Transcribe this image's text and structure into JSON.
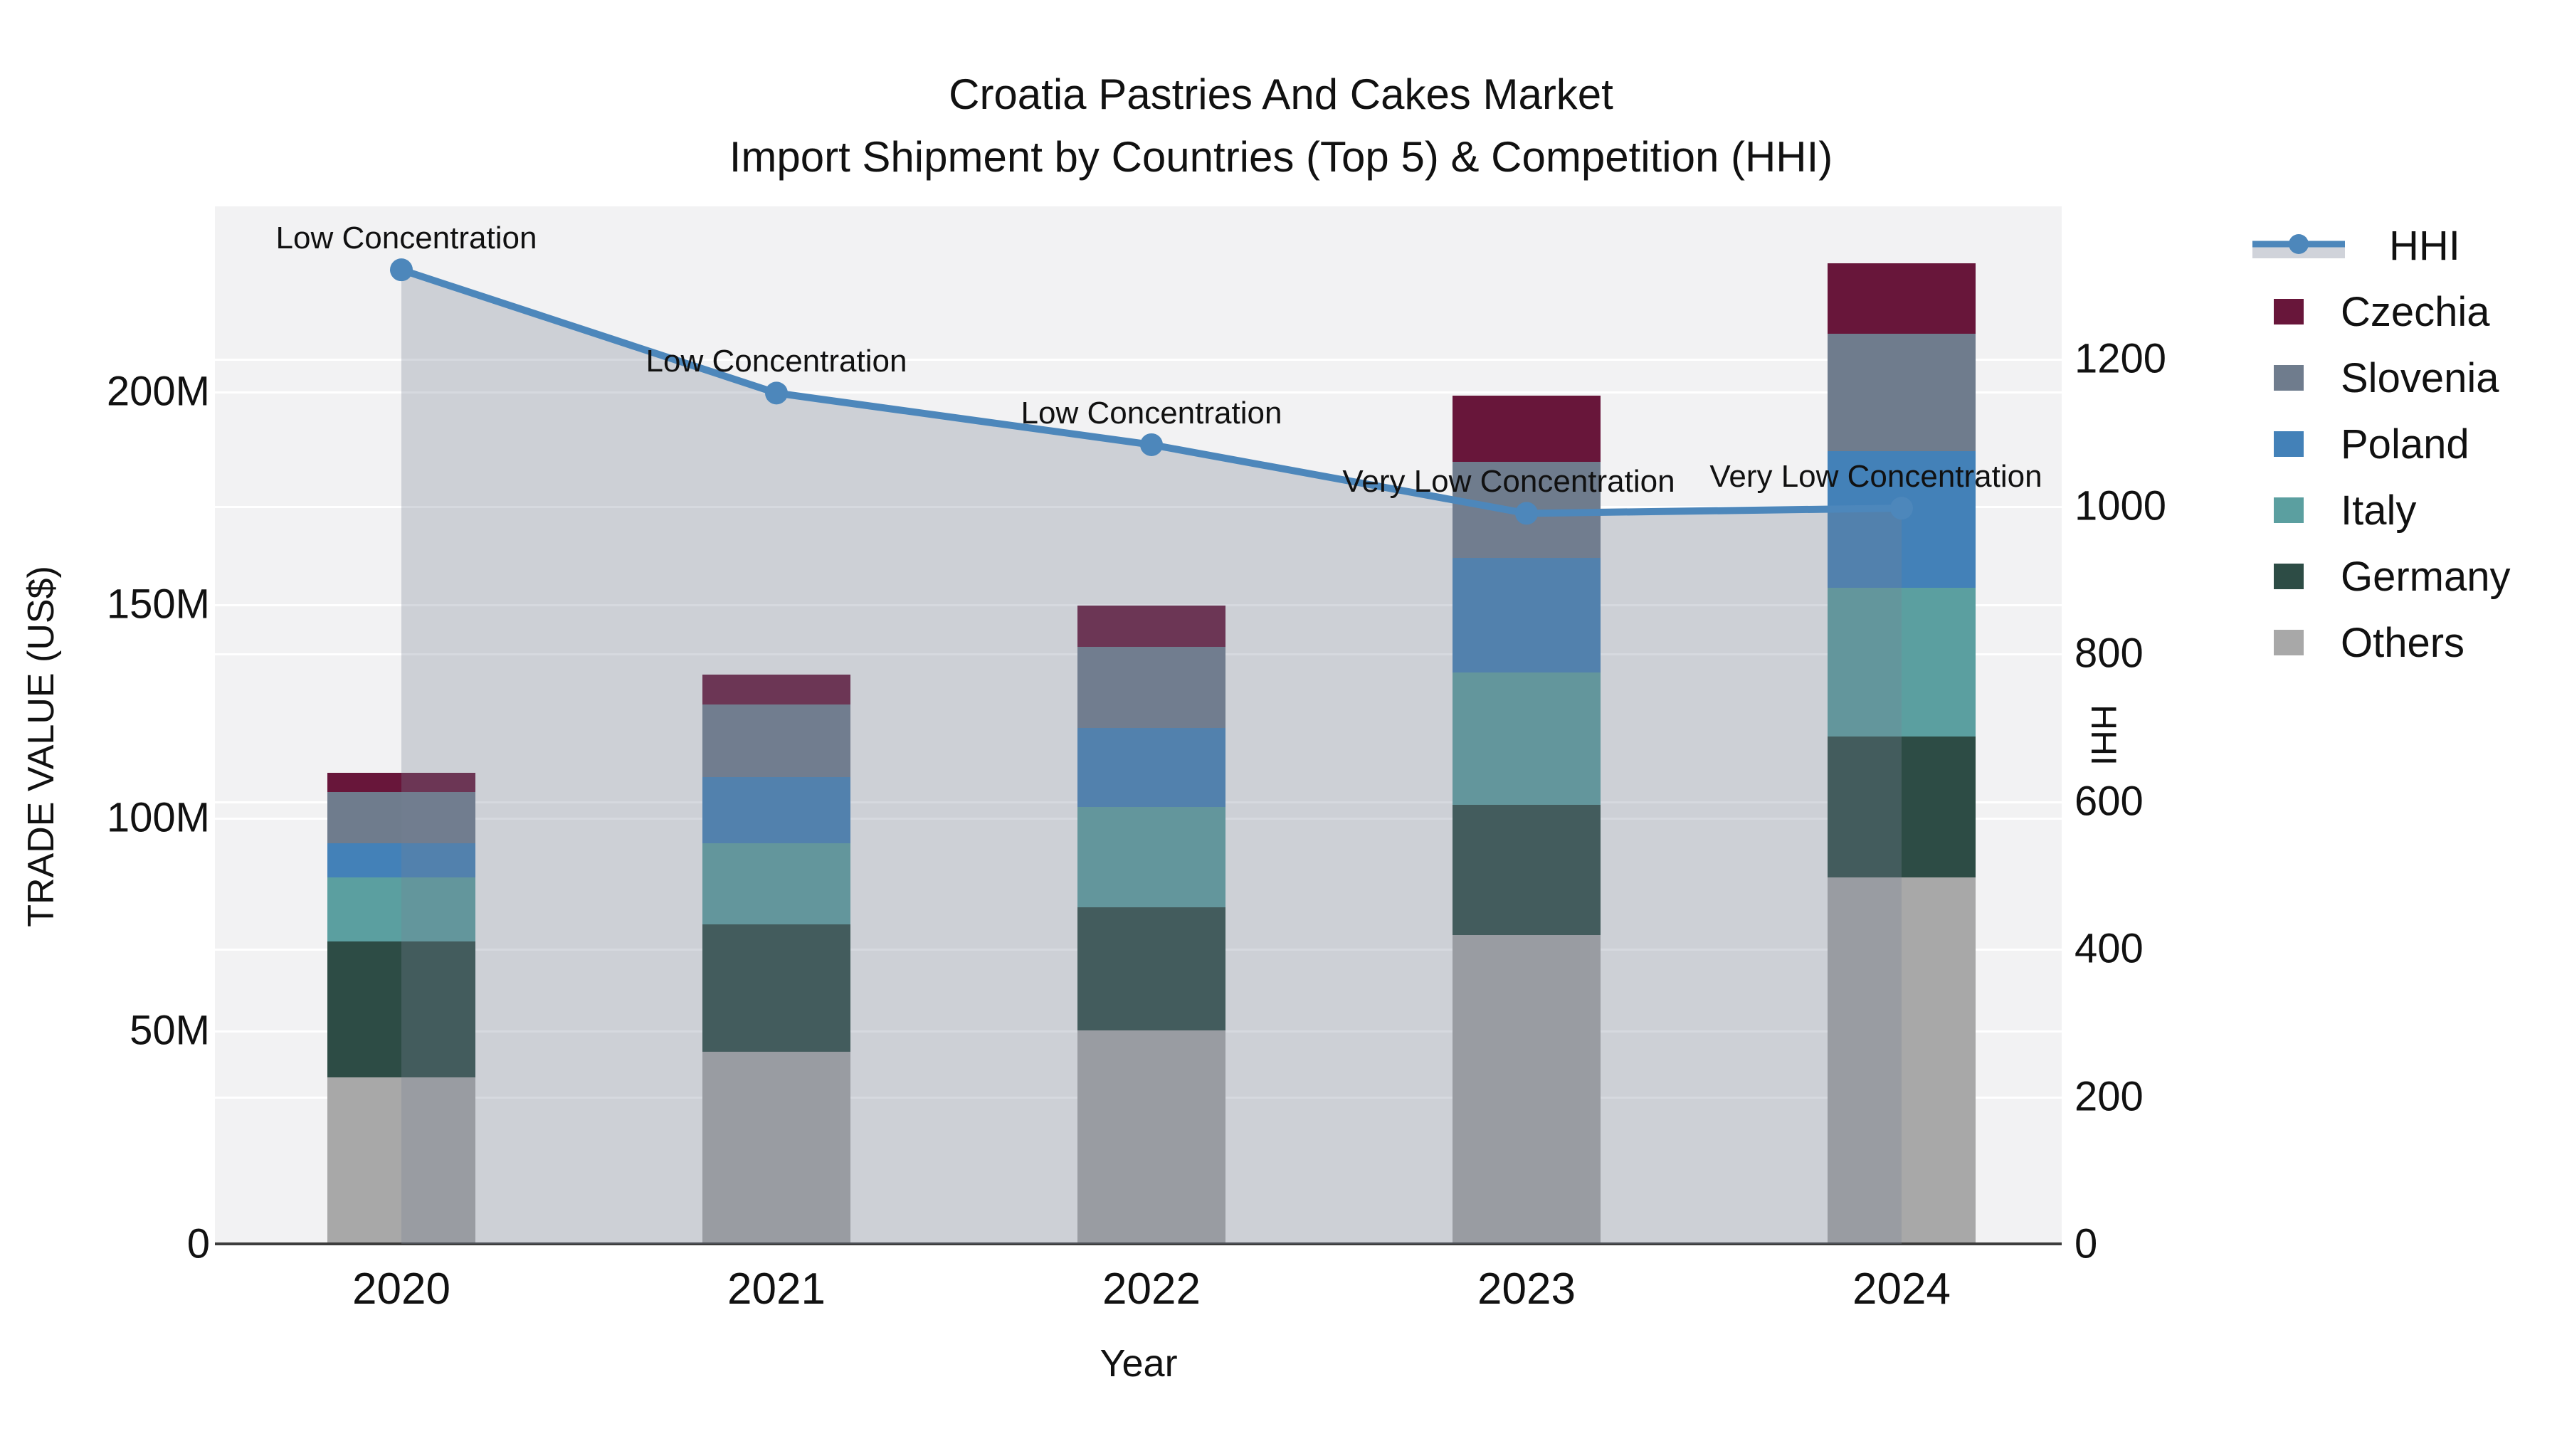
{
  "title": {
    "line1": "Croatia Pastries And Cakes Market",
    "line2": "Import Shipment by Countries (Top 5) & Competition (HHI)"
  },
  "axes": {
    "left": {
      "title": "TRADE VALUE (US$)",
      "ticks": [
        "0",
        "50M",
        "100M",
        "150M",
        "200M"
      ]
    },
    "right": {
      "title": "HHI",
      "ticks": [
        "0",
        "200",
        "400",
        "600",
        "800",
        "1000",
        "1200"
      ]
    },
    "x": {
      "title": "Year",
      "ticks": [
        "2020",
        "2021",
        "2022",
        "2023",
        "2024"
      ]
    }
  },
  "legend": {
    "items": [
      {
        "label": "HHI",
        "kind": "line",
        "color": "#4d87bb"
      },
      {
        "label": "Czechia",
        "kind": "swatch",
        "color": "#68163a"
      },
      {
        "label": "Slovenia",
        "kind": "swatch",
        "color": "#6f7c8d"
      },
      {
        "label": "Poland",
        "kind": "swatch",
        "color": "#4381b8"
      },
      {
        "label": "Italy",
        "kind": "swatch",
        "color": "#5b9fa0"
      },
      {
        "label": "Germany",
        "kind": "swatch",
        "color": "#2d4c45"
      },
      {
        "label": "Others",
        "kind": "swatch",
        "color": "#a8a8a8"
      }
    ]
  },
  "colors": {
    "hhi_line": "#4d87bb",
    "hhi_fill": "#778296",
    "hhi_fill_opacity": 0.3,
    "plot_background": "#f2f2f3",
    "gridline": "#ffffff",
    "axis_line": "#3d3d3d",
    "text": "#111111"
  },
  "chart_data": {
    "type": "bar",
    "stacked": true,
    "categories": [
      "2020",
      "2021",
      "2022",
      "2023",
      "2024"
    ],
    "series": [
      {
        "name": "Others",
        "color": "#a8a8a8",
        "values_million_usd": [
          39,
          45,
          50,
          72.5,
          86
        ]
      },
      {
        "name": "Germany",
        "color": "#2d4c45",
        "values_million_usd": [
          32,
          30,
          29,
          30.5,
          33
        ]
      },
      {
        "name": "Italy",
        "color": "#5b9fa0",
        "values_million_usd": [
          15,
          19,
          23.5,
          31,
          35
        ]
      },
      {
        "name": "Poland",
        "color": "#4381b8",
        "values_million_usd": [
          8,
          15.5,
          18.5,
          27,
          32
        ]
      },
      {
        "name": "Slovenia",
        "color": "#6f7c8d",
        "values_million_usd": [
          12,
          17,
          19,
          22.5,
          27.5
        ]
      },
      {
        "name": "Czechia",
        "color": "#68163a",
        "values_million_usd": [
          4.5,
          7,
          9.7,
          15.5,
          16.5
        ]
      }
    ],
    "line_series": {
      "name": "HHI",
      "axis": "right",
      "values": [
        1320,
        1153,
        1083,
        990,
        997
      ],
      "point_annotations": [
        "Low Concentration",
        "Low Concentration",
        "Low Concentration",
        "Very Low Concentration",
        "Very Low Concentration"
      ]
    },
    "title": "Croatia Pastries And Cakes Market — Import Shipment by Countries (Top 5) & Competition (HHI)",
    "xlabel": "Year",
    "ylabel": "TRADE VALUE (US$)",
    "ylabel_right": "HHI",
    "ylim_left_million_usd": [
      0,
      243.4
    ],
    "ylim_right": [
      0,
      1406
    ],
    "grid": true,
    "legend_position": "right"
  }
}
